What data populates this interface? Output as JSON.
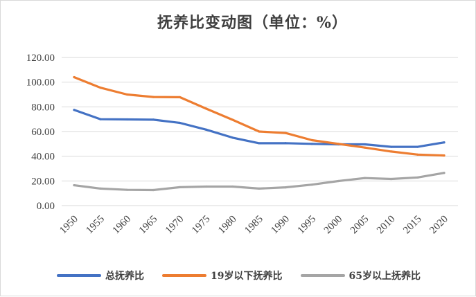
{
  "chart_data": {
    "type": "line",
    "title": "抚养比变动图（单位：%）",
    "categories": [
      "1950",
      "1955",
      "1960",
      "1965",
      "1970",
      "1975",
      "1980",
      "1985",
      "1990",
      "1995",
      "2000",
      "2005",
      "2010",
      "2015",
      "2020"
    ],
    "ylim": [
      0,
      120
    ],
    "yticks": [
      "0.00",
      "20.00",
      "40.00",
      "60.00",
      "80.00",
      "100.00",
      "120.00"
    ],
    "grid": true,
    "legend_position": "bottom",
    "series": [
      {
        "name": "总抚养比",
        "color": "#4472c4",
        "x": [
          1950,
          1955,
          1960,
          1965,
          1970,
          1975,
          1980,
          1985,
          1990,
          1995,
          2000,
          2005,
          2010,
          2015,
          2020
        ],
        "values": [
          77.5,
          70,
          69.8,
          69.6,
          67,
          61.5,
          55,
          50.5,
          50.6,
          50,
          49.6,
          49.6,
          47.6,
          47.6,
          51.2
        ]
      },
      {
        "name": "19岁以下抚养比",
        "color": "#ed7d31",
        "x": [
          1950,
          1955,
          1960,
          1965,
          1970,
          1975,
          1980,
          1985,
          1990,
          1995,
          2000,
          2005,
          2010,
          2015,
          2020
        ],
        "values": [
          104,
          95.5,
          90,
          88,
          87.8,
          78.5,
          69.5,
          60,
          58.8,
          53,
          50,
          47,
          43.8,
          41.3,
          40.6
        ]
      },
      {
        "name": "65岁以上抚养比",
        "color": "#a5a5a5",
        "x": [
          1950,
          1955,
          1960,
          1965,
          1970,
          1975,
          1980,
          1985,
          1990,
          1995,
          2000,
          2005,
          2010,
          2015,
          2020
        ],
        "values": [
          16.5,
          13.8,
          12.8,
          12.6,
          14.9,
          15.4,
          15.4,
          13.8,
          14.8,
          17,
          19.9,
          22.3,
          21.6,
          22.8,
          26.5
        ]
      }
    ]
  }
}
